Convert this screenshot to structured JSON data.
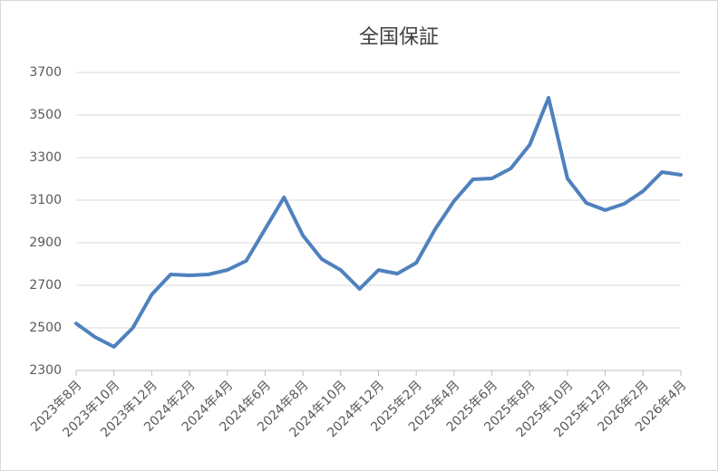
{
  "chart_data": {
    "type": "line",
    "title": "全国保証",
    "categories": [
      "2023年8月",
      null,
      "2023年10月",
      null,
      "2023年12月",
      null,
      "2024年2月",
      null,
      "2024年4月",
      null,
      "2024年6月",
      null,
      "2024年8月",
      null,
      "2024年10月",
      null,
      "2024年12月",
      null,
      "2025年2月",
      null,
      "2025年4月",
      null,
      "2025年6月",
      null,
      "2025年8月",
      null,
      "2025年10月",
      null,
      "2025年12月",
      null,
      "2026年2月",
      null,
      "2026年4月"
    ],
    "values": [
      2521,
      2457,
      2411,
      2500,
      2657,
      2751,
      2747,
      2751,
      2772,
      2815,
      2964,
      3113,
      2934,
      2823,
      2772,
      2683,
      2772,
      2755,
      2806,
      2964,
      3096,
      3198,
      3202,
      3249,
      3360,
      3581,
      3202,
      3087,
      3053,
      3083,
      3142,
      3232,
      3219
    ],
    "color": "#4f81bd",
    "ylim": [
      2300,
      3700
    ],
    "yticks": [
      2300,
      2500,
      2700,
      2900,
      3100,
      3300,
      3500,
      3700
    ],
    "grid": true
  }
}
